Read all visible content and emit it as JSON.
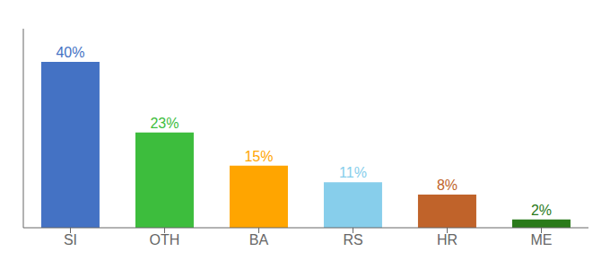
{
  "chart_data": {
    "type": "bar",
    "categories": [
      "SI",
      "OTH",
      "BA",
      "RS",
      "HR",
      "ME"
    ],
    "values": [
      40,
      23,
      15,
      11,
      8,
      2
    ],
    "value_labels": [
      "40%",
      "23%",
      "15%",
      "11%",
      "8%",
      "2%"
    ],
    "data_labels": true,
    "colors": [
      "#4472C4",
      "#3DBD3D",
      "#FFA500",
      "#87CEEB",
      "#C0632A",
      "#2A7A1A"
    ],
    "ylim": [
      0,
      48
    ],
    "tick_labels": "x",
    "grid": false
  }
}
